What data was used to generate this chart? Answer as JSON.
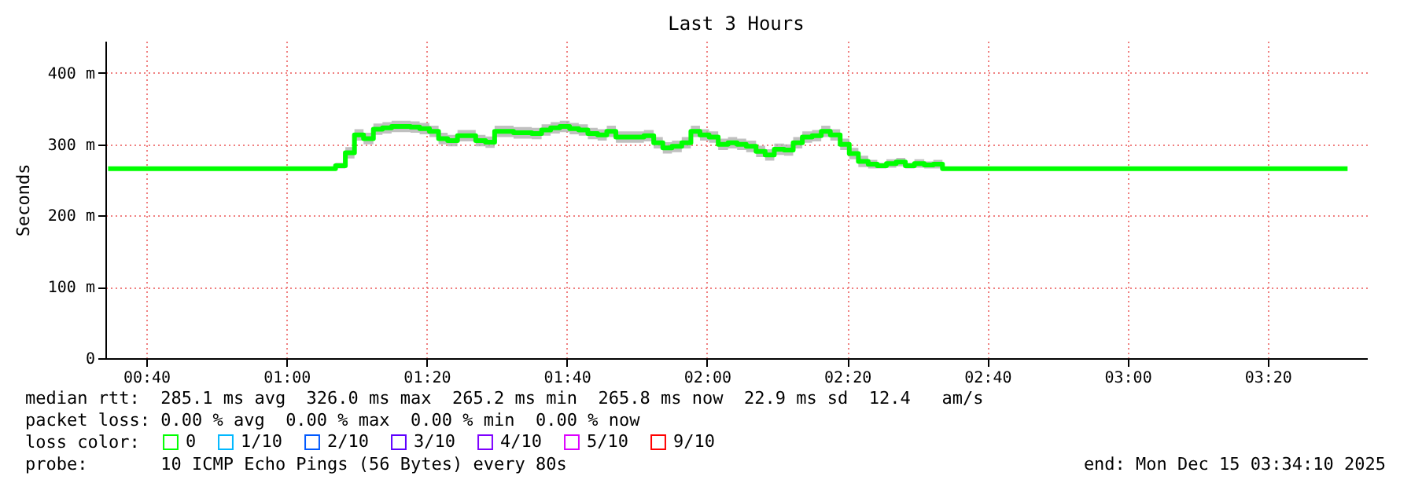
{
  "chart_data": {
    "type": "step",
    "title": "Last 3 Hours",
    "ylabel": "Seconds",
    "legend_title": "loss color:",
    "x": [
      0.5758,
      1.11,
      1.1167,
      1.14,
      1.1617,
      1.1833,
      1.2067,
      1.2283,
      1.25,
      1.2733,
      1.295,
      1.3167,
      1.34,
      1.3617,
      1.3833,
      1.4067,
      1.4283,
      1.45,
      1.4733,
      1.495,
      1.5167,
      1.54,
      1.5617,
      1.5833,
      1.6067,
      1.6283,
      1.65,
      1.6733,
      1.695,
      1.7167,
      1.74,
      1.7617,
      1.7833,
      1.8067,
      1.8283,
      1.85,
      1.8733,
      1.895,
      1.9167,
      1.94,
      1.9617,
      1.9833,
      2.005,
      2.0267,
      2.05,
      2.0717,
      2.0933,
      2.1167,
      2.1383,
      2.16,
      2.1833,
      2.205,
      2.2267,
      2.25,
      2.2717,
      2.2933,
      2.3167,
      2.3383,
      2.36,
      2.3833,
      2.405,
      2.4267,
      2.45,
      2.4717,
      2.4933,
      2.5167,
      2.5383,
      2.56,
      3.5233
    ],
    "series": [
      {
        "name": "0",
        "color": "#00ff00",
        "values": [
          265.8,
          265.8,
          270,
          288,
          313,
          308,
          321,
          323,
          325,
          325,
          324,
          322,
          318,
          308,
          305,
          312,
          312,
          305,
          303,
          318,
          318,
          316,
          316,
          315,
          320,
          323,
          325,
          322,
          320,
          315,
          313,
          318,
          310,
          310,
          310,
          312,
          302,
          295,
          297,
          302,
          318,
          313,
          310,
          300,
          302,
          300,
          297,
          290,
          285,
          293,
          292,
          302,
          310,
          312,
          318,
          313,
          300,
          287,
          276,
          272,
          270,
          273,
          275,
          270,
          273,
          271,
          272,
          265.8,
          265.8
        ],
        "lower": [
          265.8,
          265.8,
          266,
          280,
          305,
          300,
          313,
          315,
          317,
          317,
          316,
          314,
          310,
          300,
          297,
          304,
          304,
          297,
          295,
          310,
          310,
          308,
          308,
          307,
          312,
          315,
          317,
          314,
          312,
          307,
          305,
          310,
          302,
          302,
          302,
          304,
          294,
          287,
          289,
          294,
          310,
          305,
          302,
          292,
          294,
          292,
          289,
          282,
          277,
          285,
          284,
          294,
          302,
          304,
          310,
          305,
          292,
          279,
          268,
          266,
          266,
          267,
          269,
          266,
          267,
          266,
          266,
          265.8,
          265.8
        ],
        "upper": [
          265.8,
          265.8,
          274,
          296,
          321,
          316,
          329,
          331,
          333,
          333,
          332,
          330,
          326,
          316,
          313,
          320,
          320,
          313,
          311,
          326,
          326,
          324,
          324,
          323,
          328,
          331,
          333,
          330,
          328,
          323,
          321,
          326,
          318,
          318,
          318,
          320,
          310,
          303,
          305,
          310,
          326,
          321,
          318,
          308,
          310,
          308,
          305,
          298,
          293,
          301,
          300,
          310,
          318,
          320,
          326,
          321,
          308,
          295,
          284,
          278,
          274,
          279,
          281,
          274,
          279,
          276,
          278,
          265.8,
          265.8
        ]
      },
      {
        "name": "1/10",
        "color": "#00b8ff",
        "values": [
          null,
          null,
          null,
          null,
          null,
          null,
          null,
          null,
          null,
          null,
          null,
          null,
          null,
          null,
          null,
          null,
          null,
          null,
          null,
          null,
          null,
          null,
          null,
          null,
          null,
          null,
          null,
          null,
          null,
          null,
          null,
          null,
          null,
          null,
          null,
          null,
          null,
          null,
          null,
          null,
          null,
          null,
          null,
          null,
          null,
          null,
          null,
          null,
          null,
          null,
          null,
          null,
          null,
          null,
          null,
          null,
          null,
          null,
          null,
          null,
          null,
          null,
          null,
          null,
          null,
          null,
          null,
          null,
          null
        ]
      },
      {
        "name": "2/10",
        "color": "#0059ff",
        "values": [
          null,
          null,
          null,
          null,
          null,
          null,
          null,
          null,
          null,
          null,
          null,
          null,
          null,
          null,
          null,
          null,
          null,
          null,
          null,
          null,
          null,
          null,
          null,
          null,
          null,
          null,
          null,
          null,
          null,
          null,
          null,
          null,
          null,
          null,
          null,
          null,
          null,
          null,
          null,
          null,
          null,
          null,
          null,
          null,
          null,
          null,
          null,
          null,
          null,
          null,
          null,
          null,
          null,
          null,
          null,
          null,
          null,
          null,
          null,
          null,
          null,
          null,
          null,
          null,
          null,
          null,
          null,
          null,
          null
        ]
      },
      {
        "name": "3/10",
        "color": "#5e00ff",
        "values": [
          null,
          null,
          null,
          null,
          null,
          null,
          null,
          null,
          null,
          null,
          null,
          null,
          null,
          null,
          null,
          null,
          null,
          null,
          null,
          null,
          null,
          null,
          null,
          null,
          null,
          null,
          null,
          null,
          null,
          null,
          null,
          null,
          null,
          null,
          null,
          null,
          null,
          null,
          null,
          null,
          null,
          null,
          null,
          null,
          null,
          null,
          null,
          null,
          null,
          null,
          null,
          null,
          null,
          null,
          null,
          null,
          null,
          null,
          null,
          null,
          null,
          null,
          null,
          null,
          null,
          null,
          null,
          null,
          null
        ]
      },
      {
        "name": "4/10",
        "color": "#7e00ff",
        "values": [
          null,
          null,
          null,
          null,
          null,
          null,
          null,
          null,
          null,
          null,
          null,
          null,
          null,
          null,
          null,
          null,
          null,
          null,
          null,
          null,
          null,
          null,
          null,
          null,
          null,
          null,
          null,
          null,
          null,
          null,
          null,
          null,
          null,
          null,
          null,
          null,
          null,
          null,
          null,
          null,
          null,
          null,
          null,
          null,
          null,
          null,
          null,
          null,
          null,
          null,
          null,
          null,
          null,
          null,
          null,
          null,
          null,
          null,
          null,
          null,
          null,
          null,
          null,
          null,
          null,
          null,
          null,
          null,
          null
        ]
      },
      {
        "name": "5/10",
        "color": "#dd00ff",
        "values": [
          null,
          null,
          null,
          null,
          null,
          null,
          null,
          null,
          null,
          null,
          null,
          null,
          null,
          null,
          null,
          null,
          null,
          null,
          null,
          null,
          null,
          null,
          null,
          null,
          null,
          null,
          null,
          null,
          null,
          null,
          null,
          null,
          null,
          null,
          null,
          null,
          null,
          null,
          null,
          null,
          null,
          null,
          null,
          null,
          null,
          null,
          null,
          null,
          null,
          null,
          null,
          null,
          null,
          null,
          null,
          null,
          null,
          null,
          null,
          null,
          null,
          null,
          null,
          null,
          null,
          null,
          null,
          null,
          null
        ]
      },
      {
        "name": "9/10",
        "color": "#ff0000",
        "values": [
          null,
          null,
          null,
          null,
          null,
          null,
          null,
          null,
          null,
          null,
          null,
          null,
          null,
          null,
          null,
          null,
          null,
          null,
          null,
          null,
          null,
          null,
          null,
          null,
          null,
          null,
          null,
          null,
          null,
          null,
          null,
          null,
          null,
          null,
          null,
          null,
          null,
          null,
          null,
          null,
          null,
          null,
          null,
          null,
          null,
          null,
          null,
          null,
          null,
          null,
          null,
          null,
          null,
          null,
          null,
          null,
          null,
          null,
          null,
          null,
          null,
          null,
          null,
          null,
          null,
          null,
          null,
          null,
          null
        ]
      }
    ],
    "xlim": [
      0.5694,
      3.5694
    ],
    "xticks": [
      {
        "value": 0.6667,
        "label": "00:40"
      },
      {
        "value": 1,
        "label": "01:00"
      },
      {
        "value": 1.3333,
        "label": "01:20"
      },
      {
        "value": 1.6667,
        "label": "01:40"
      },
      {
        "value": 2,
        "label": "02:00"
      },
      {
        "value": 2.3333,
        "label": "02:20"
      },
      {
        "value": 2.6667,
        "label": "02:40"
      },
      {
        "value": 3,
        "label": "03:00"
      },
      {
        "value": 3.3333,
        "label": "03:20"
      }
    ],
    "ylim": [
      0,
      445
    ],
    "yticks": [
      0,
      {
        "value": 100,
        "label": "100 m"
      },
      {
        "value": 200,
        "label": "200 m"
      },
      {
        "value": 300,
        "label": "300 m"
      },
      {
        "value": 400,
        "label": "400 m"
      }
    ],
    "grid": true,
    "legend": "bottom",
    "annotations": [
      "median rtt:  285.1 ms avg  326.0 ms max  265.2 ms min  265.8 ms now  22.9 ms sd  12.4   am/s",
      "packet loss: 0.00 % avg  0.00 % max  0.00 % min  0.00 % now",
      "probe:       10 ICMP Echo Pings (56 Bytes) every 80s",
      "end: Mon Dec 15 03:34:10 2025"
    ]
  }
}
